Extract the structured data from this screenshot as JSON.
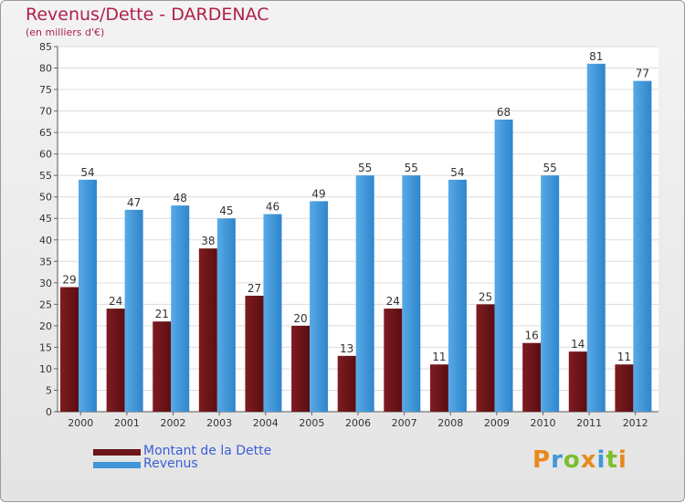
{
  "header": {
    "title": "Revenus/Dette - DARDENAC",
    "subtitle": "(en milliers d'€)"
  },
  "chart_data": {
    "type": "bar",
    "categories": [
      "2000",
      "2001",
      "2002",
      "2003",
      "2004",
      "2005",
      "2006",
      "2007",
      "2008",
      "2009",
      "2010",
      "2011",
      "2012"
    ],
    "series": [
      {
        "name": "Montant de la Dette",
        "color": "#6b1518",
        "values": [
          29,
          24,
          21,
          38,
          27,
          20,
          13,
          24,
          11,
          25,
          16,
          14,
          11
        ]
      },
      {
        "name": "Revenus",
        "color": "#3f97d9",
        "values": [
          54,
          47,
          48,
          45,
          46,
          49,
          55,
          55,
          54,
          68,
          55,
          81,
          77
        ]
      }
    ],
    "ylim": [
      0,
      85
    ],
    "yticks": [
      0,
      5,
      10,
      15,
      20,
      25,
      30,
      35,
      40,
      45,
      50,
      55,
      60,
      65,
      70,
      75,
      80,
      85
    ],
    "grid": true,
    "legend_position": "bottom-left"
  },
  "legend": [
    {
      "label": "Montant de la Dette",
      "color": "#6b1518"
    },
    {
      "label": "Revenus",
      "color": "#3f97d9"
    }
  ],
  "logo": {
    "letters": [
      "P",
      "r",
      "o",
      "x",
      "i",
      "t",
      "i"
    ],
    "colors": [
      "#e8891c",
      "#3f97d9",
      "#7bbf2e",
      "#e8891c",
      "#3f97d9",
      "#7bbf2e",
      "#e8891c"
    ]
  }
}
